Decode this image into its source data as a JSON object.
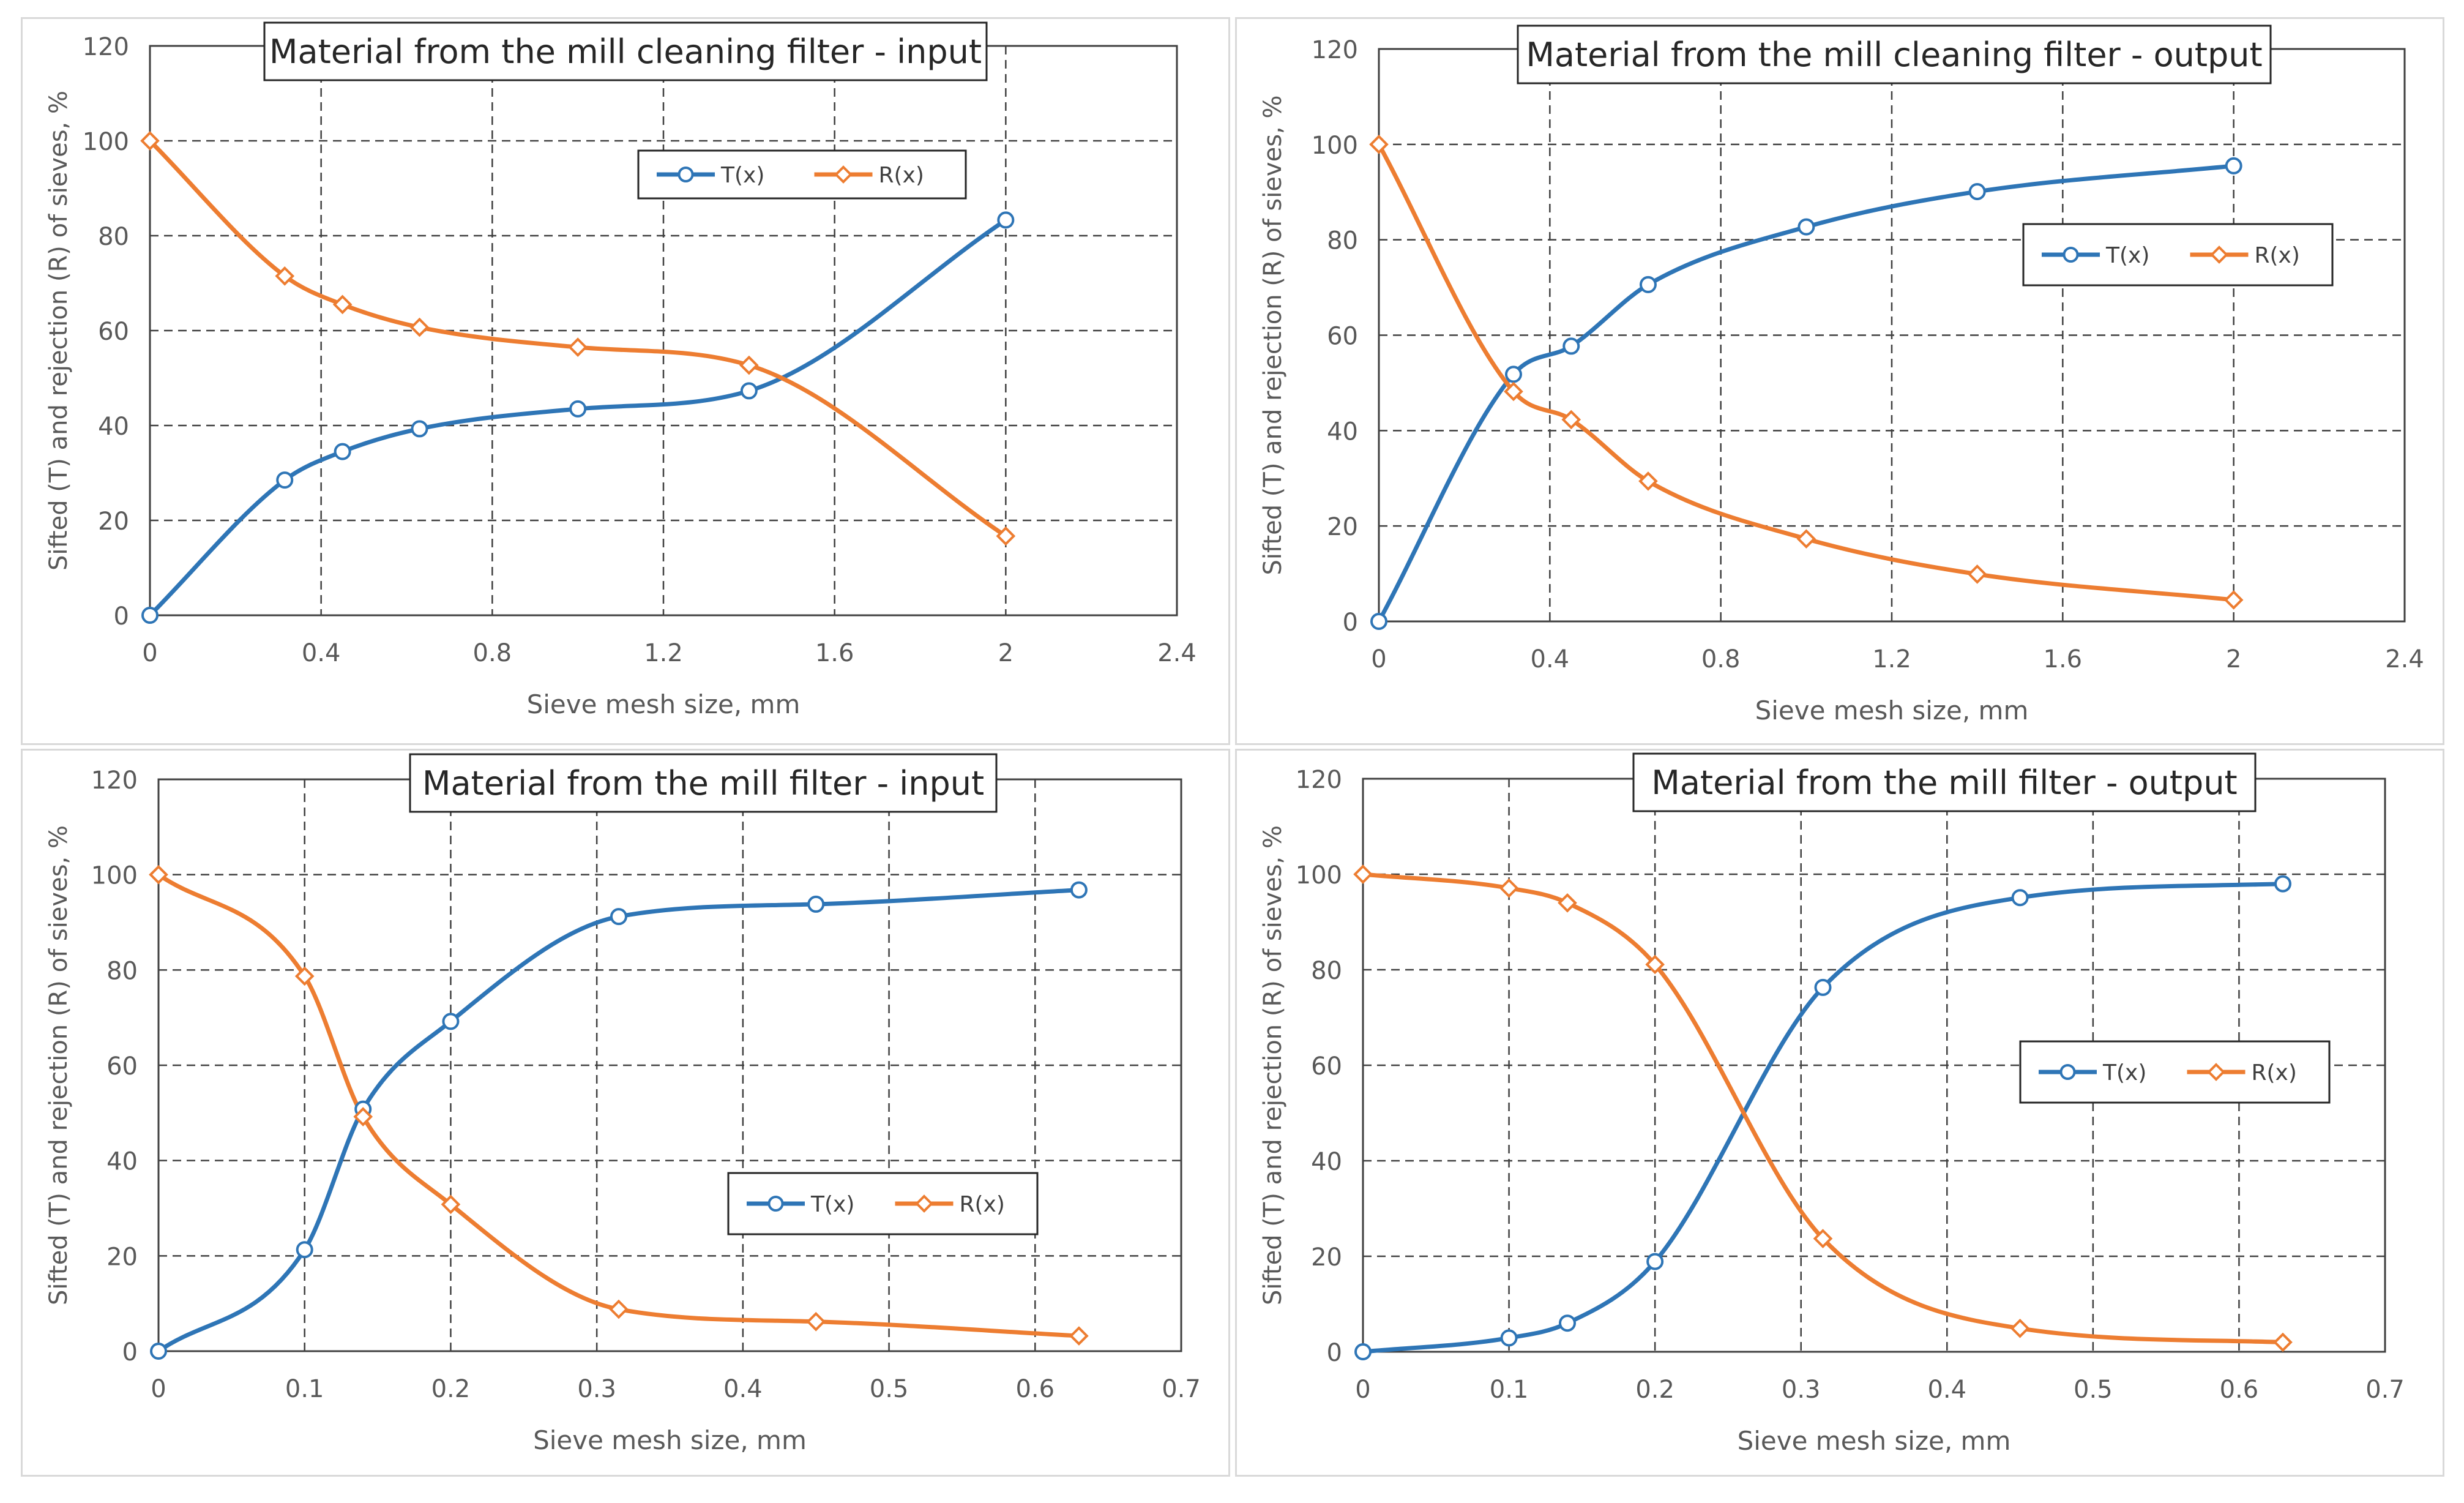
{
  "colors": {
    "T": "#2e75b6",
    "R": "#ed7d31",
    "grid": "#404040",
    "axis": "#bfbfbf"
  },
  "legend_labels": {
    "T": "T(x)",
    "R": "R(x)"
  },
  "chart_data": [
    {
      "type": "line",
      "title": "Material from the mill cleaning filter - input",
      "xlabel": "Sieve mesh size, mm",
      "ylabel": "Sifted (T) and rejection (R) of sieves, %",
      "xlim": [
        0,
        2.4
      ],
      "ylim": [
        0,
        120
      ],
      "xticks": [
        0,
        0.4,
        0.8,
        1.2,
        1.6,
        2,
        2.4
      ],
      "xtick_labels": [
        "0",
        "0.4",
        "0.8",
        "1.2",
        "1.6",
        "2",
        "2.4"
      ],
      "yticks": [
        0,
        20,
        40,
        60,
        80,
        100,
        120
      ],
      "ytick_labels": [
        "0",
        "20",
        "40",
        "60",
        "80",
        "100",
        "120"
      ],
      "legend_position": "top-center",
      "series": [
        {
          "name": "T(x)",
          "x": [
            0,
            0.315,
            0.45,
            0.63,
            1.0,
            1.4,
            2.0
          ],
          "y": [
            0,
            28.5,
            34.5,
            39.3,
            43.5,
            47.3,
            83.3
          ]
        },
        {
          "name": "R(x)",
          "x": [
            0,
            0.315,
            0.45,
            0.63,
            1.0,
            1.4,
            2.0
          ],
          "y": [
            100,
            71.5,
            65.5,
            60.7,
            56.5,
            52.7,
            16.7
          ]
        }
      ]
    },
    {
      "type": "line",
      "title": "Material from the mill cleaning filter - output",
      "xlabel": "Sieve mesh size, mm",
      "ylabel": "Sifted (T) and rejection (R) of sieves, %",
      "xlim": [
        0,
        2.4
      ],
      "ylim": [
        0,
        120
      ],
      "xticks": [
        0,
        0.4,
        0.8,
        1.2,
        1.6,
        2,
        2.4
      ],
      "xtick_labels": [
        "0",
        "0.4",
        "0.8",
        "1.2",
        "1.6",
        "2",
        "2.4"
      ],
      "yticks": [
        0,
        20,
        40,
        60,
        80,
        100,
        120
      ],
      "ytick_labels": [
        "0",
        "20",
        "40",
        "60",
        "80",
        "100",
        "120"
      ],
      "legend_position": "right",
      "series": [
        {
          "name": "T(x)",
          "x": [
            0,
            0.315,
            0.45,
            0.63,
            1.0,
            1.4,
            2.0
          ],
          "y": [
            0,
            51.8,
            57.7,
            70.6,
            82.7,
            90.1,
            95.5
          ]
        },
        {
          "name": "R(x)",
          "x": [
            0,
            0.315,
            0.45,
            0.63,
            1.0,
            1.4,
            2.0
          ],
          "y": [
            100,
            48.2,
            42.3,
            29.4,
            17.3,
            9.9,
            4.5
          ]
        }
      ]
    },
    {
      "type": "line",
      "title": "Material from the mill filter - input",
      "xlabel": "Sieve mesh size, mm",
      "ylabel": "Sifted (T) and rejection (R) of sieves, %",
      "xlim": [
        0,
        0.7
      ],
      "ylim": [
        0,
        120
      ],
      "xticks": [
        0,
        0.1,
        0.2,
        0.3,
        0.4,
        0.5,
        0.6,
        0.7
      ],
      "xtick_labels": [
        "0",
        "0.1",
        "0.2",
        "0.3",
        "0.4",
        "0.5",
        "0.6",
        "0.7"
      ],
      "yticks": [
        0,
        20,
        40,
        60,
        80,
        100,
        120
      ],
      "ytick_labels": [
        "0",
        "20",
        "40",
        "60",
        "80",
        "100",
        "120"
      ],
      "legend_position": "center-right",
      "series": [
        {
          "name": "T(x)",
          "x": [
            0,
            0.1,
            0.14,
            0.2,
            0.315,
            0.45,
            0.63
          ],
          "y": [
            0,
            21.3,
            50.8,
            69.2,
            91.2,
            93.8,
            96.8
          ]
        },
        {
          "name": "R(x)",
          "x": [
            0,
            0.1,
            0.14,
            0.2,
            0.315,
            0.45,
            0.63
          ],
          "y": [
            100,
            78.7,
            49.2,
            30.8,
            8.8,
            6.2,
            3.2
          ]
        }
      ]
    },
    {
      "type": "line",
      "title": "Material from the mill filter - output",
      "xlabel": "Sieve mesh size, mm",
      "ylabel": "Sifted (T) and rejection (R) of sieves, %",
      "xlim": [
        0,
        0.7
      ],
      "ylim": [
        0,
        120
      ],
      "xticks": [
        0,
        0.1,
        0.2,
        0.3,
        0.4,
        0.5,
        0.6,
        0.7
      ],
      "xtick_labels": [
        "0",
        "0.1",
        "0.2",
        "0.3",
        "0.4",
        "0.5",
        "0.6",
        "0.7"
      ],
      "yticks": [
        0,
        20,
        40,
        60,
        80,
        100,
        120
      ],
      "ytick_labels": [
        "0",
        "20",
        "40",
        "60",
        "80",
        "100",
        "120"
      ],
      "legend_position": "right",
      "series": [
        {
          "name": "T(x)",
          "x": [
            0,
            0.1,
            0.14,
            0.2,
            0.315,
            0.45,
            0.63
          ],
          "y": [
            0,
            2.9,
            6.0,
            18.9,
            76.3,
            95.1,
            98.0
          ]
        },
        {
          "name": "R(x)",
          "x": [
            0,
            0.1,
            0.14,
            0.2,
            0.315,
            0.45,
            0.63
          ],
          "y": [
            100,
            97.1,
            94.0,
            81.1,
            23.7,
            4.9,
            2.0
          ]
        }
      ]
    }
  ]
}
